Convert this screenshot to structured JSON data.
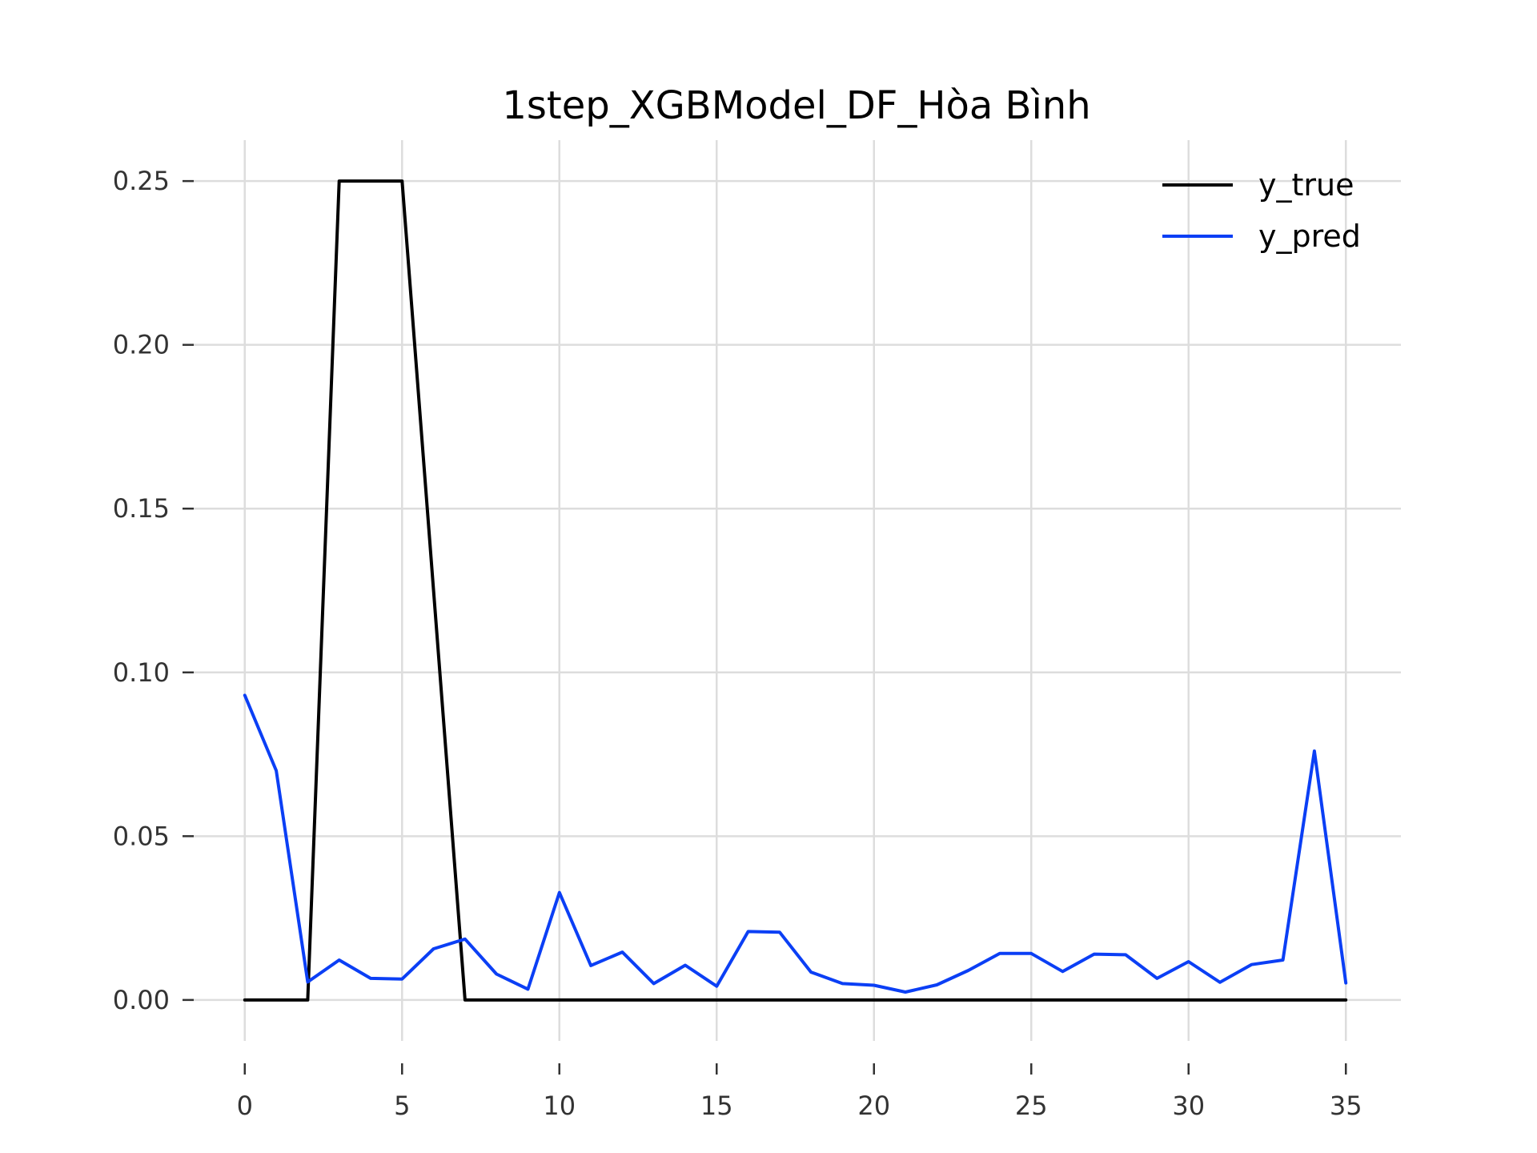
{
  "chart_data": {
    "type": "line",
    "title": "1step_XGBModel_DF_Hòa Bình",
    "xlabel": "",
    "ylabel": "",
    "xlim": [
      -1.75,
      36.75
    ],
    "ylim": [
      -0.0125,
      0.2625
    ],
    "grid": true,
    "legend_position": "top-right",
    "x_ticks": [
      0,
      5,
      10,
      15,
      20,
      25,
      30,
      35
    ],
    "x_tick_labels": [
      "0",
      "5",
      "10",
      "15",
      "20",
      "25",
      "30",
      "35"
    ],
    "y_ticks": [
      0.0,
      0.05,
      0.1,
      0.15,
      0.2,
      0.25
    ],
    "y_tick_labels": [
      "0.00",
      "0.05",
      "0.10",
      "0.15",
      "0.20",
      "0.25"
    ],
    "x": [
      0,
      1,
      2,
      3,
      4,
      5,
      6,
      7,
      8,
      9,
      10,
      11,
      12,
      13,
      14,
      15,
      16,
      17,
      18,
      19,
      20,
      21,
      22,
      23,
      24,
      25,
      26,
      27,
      28,
      29,
      30,
      31,
      32,
      33,
      34,
      35
    ],
    "series": [
      {
        "name": "y_true",
        "color": "#000000",
        "values": [
          0,
          0,
          0,
          0.25,
          0.25,
          0.25,
          0.125,
          0,
          0,
          0,
          0,
          0,
          0,
          0,
          0,
          0,
          0,
          0,
          0,
          0,
          0,
          0,
          0,
          0,
          0,
          0,
          0,
          0,
          0,
          0,
          0,
          0,
          0,
          0,
          0,
          0
        ]
      },
      {
        "name": "y_pred",
        "color": "#0b3ff5",
        "values": [
          0.093,
          0.07,
          0.0055,
          0.0122,
          0.0066,
          0.0064,
          0.0156,
          0.0186,
          0.0079,
          0.0033,
          0.0328,
          0.0105,
          0.0146,
          0.005,
          0.0106,
          0.0042,
          0.0209,
          0.0207,
          0.0085,
          0.005,
          0.0045,
          0.0024,
          0.0046,
          0.009,
          0.0142,
          0.0142,
          0.0087,
          0.014,
          0.0138,
          0.0066,
          0.0117,
          0.0054,
          0.0108,
          0.0122,
          0.076,
          0.0052
        ]
      }
    ]
  }
}
